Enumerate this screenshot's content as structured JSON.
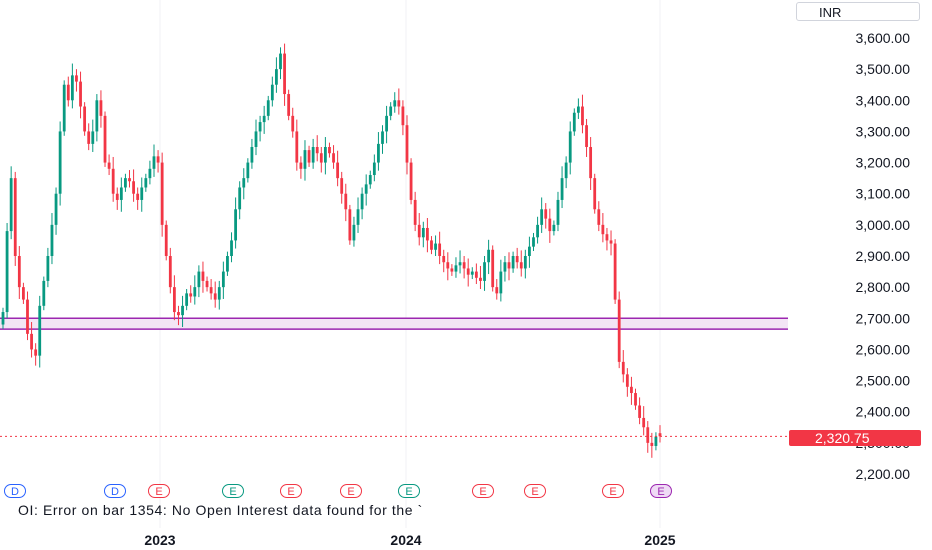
{
  "currency_label": "INR",
  "last_price_label": "2,320.75",
  "oi_error_text": "OI: Error on bar 1354: No Open Interest data found for the `",
  "colors": {
    "up": "#089981",
    "down": "#f23645",
    "zone": "#9c27b0",
    "zone_fill": "#f3e5f5"
  },
  "events": [
    {
      "letter": "D",
      "kind": "D"
    },
    {
      "letter": "D",
      "kind": "D"
    },
    {
      "letter": "E",
      "kind": "Er"
    },
    {
      "letter": "E",
      "kind": "Eg"
    },
    {
      "letter": "E",
      "kind": "Er"
    },
    {
      "letter": "E",
      "kind": "Er"
    },
    {
      "letter": "E",
      "kind": "Eg"
    },
    {
      "letter": "E",
      "kind": "Er"
    },
    {
      "letter": "E",
      "kind": "Er"
    },
    {
      "letter": "E",
      "kind": "Er"
    },
    {
      "letter": "E",
      "kind": "Ep"
    }
  ],
  "chart_data": {
    "type": "candlestick",
    "y_axis": {
      "ticks": [
        2200,
        2300,
        2400,
        2500,
        2600,
        2700,
        2800,
        2900,
        3000,
        3100,
        3200,
        3300,
        3400,
        3500,
        3600
      ],
      "tick_labels": [
        "2,200.00",
        "2,300.00",
        "2,400.00",
        "2,500.00",
        "2,600.00",
        "2,700.00",
        "2,800.00",
        "2,900.00",
        "3,000.00",
        "3,100.00",
        "3,200.00",
        "3,300.00",
        "3,400.00",
        "3,500.00",
        "3,600.00"
      ],
      "ylim": [
        2140,
        3650
      ]
    },
    "x_axis": {
      "tick_labels": [
        "2023",
        "2024",
        "2025"
      ]
    },
    "support_zone": {
      "low": 2665,
      "high": 2700
    },
    "last_price": 2320.75,
    "closes": [
      2720,
      2980,
      3150,
      2900,
      2800,
      2760,
      2650,
      2600,
      2580,
      2740,
      2820,
      2900,
      3000,
      3100,
      3300,
      3450,
      3400,
      3480,
      3460,
      3380,
      3300,
      3260,
      3300,
      3400,
      3350,
      3200,
      3180,
      3100,
      3080,
      3120,
      3150,
      3140,
      3100,
      3080,
      3120,
      3150,
      3180,
      3220,
      3200,
      3000,
      2900,
      2800,
      2720,
      2710,
      2740,
      2780,
      2770,
      2800,
      2850,
      2820,
      2800,
      2780,
      2760,
      2800,
      2850,
      2900,
      2950,
      3050,
      3120,
      3150,
      3200,
      3250,
      3300,
      3330,
      3350,
      3400,
      3450,
      3500,
      3550,
      3420,
      3350,
      3300,
      3200,
      3180,
      3240,
      3200,
      3250,
      3230,
      3200,
      3250,
      3230,
      3200,
      3150,
      3100,
      3050,
      2950,
      3000,
      3050,
      3100,
      3130,
      3160,
      3200,
      3260,
      3300,
      3350,
      3380,
      3400,
      3380,
      3320,
      3200,
      3080,
      3000,
      2960,
      2990,
      2950,
      2920,
      2940,
      2900,
      2880,
      2860,
      2850,
      2870,
      2880,
      2860,
      2840,
      2850,
      2830,
      2820,
      2880,
      2920,
      2800,
      2780,
      2850,
      2880,
      2860,
      2900,
      2880,
      2860,
      2900,
      2930,
      2960,
      3000,
      3050,
      3020,
      2980,
      3000,
      3080,
      3150,
      3200,
      3300,
      3360,
      3380,
      3320,
      3250,
      3150,
      3050,
      3000,
      2970,
      2950,
      2940,
      2760,
      2560,
      2520,
      2480,
      2460,
      2420,
      2380,
      2350,
      2300,
      2290,
      2320,
      2321
    ]
  }
}
